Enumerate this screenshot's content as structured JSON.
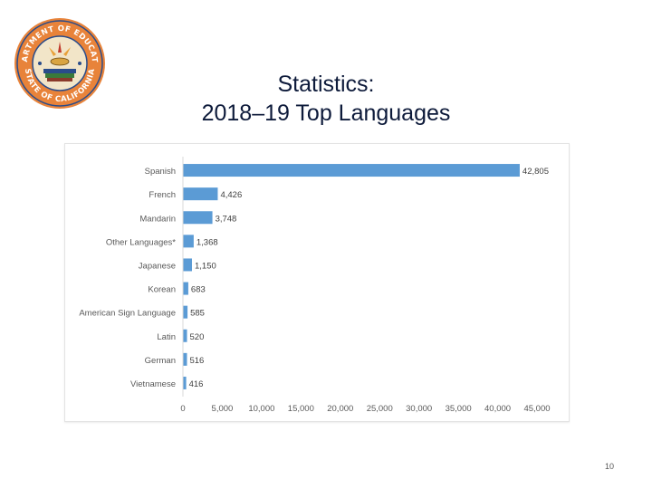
{
  "title": {
    "line1": "Statistics:",
    "line2": "2018–19 Top Languages"
  },
  "logo": {
    "text_top": "DEPARTMENT OF EDUCATION",
    "text_bottom": "STATE OF CALIFORNIA",
    "colors": {
      "ring": "#e8833a",
      "inner": "#f2e5c8",
      "accent": "#2a4c8a"
    }
  },
  "chart_data": {
    "type": "bar",
    "orientation": "horizontal",
    "categories": [
      "Spanish",
      "French",
      "Mandarin",
      "Other Languages*",
      "Japanese",
      "Korean",
      "American Sign Language",
      "Latin",
      "German",
      "Vietnamese"
    ],
    "values": [
      42805,
      4426,
      3748,
      1368,
      1150,
      683,
      585,
      520,
      516,
      416
    ],
    "value_labels": [
      "42,805",
      "4,426",
      "3,748",
      "1,368",
      "1,150",
      "683",
      "585",
      "520",
      "516",
      "416"
    ],
    "x_ticks": [
      "0",
      "5,000",
      "10,000",
      "15,000",
      "20,000",
      "25,000",
      "30,000",
      "35,000",
      "40,000",
      "45,000"
    ],
    "xlim": [
      0,
      45000
    ],
    "grid": false,
    "bar_color": "#5b9bd5"
  },
  "page_number": "10"
}
